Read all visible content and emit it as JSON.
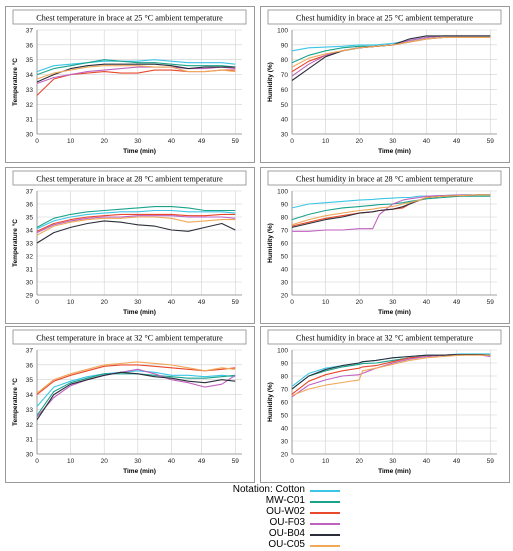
{
  "legend": {
    "prefix": "Notation:",
    "items": [
      {
        "name": "Cotton",
        "color": "#3cc5e6"
      },
      {
        "name": "MW-C01",
        "color": "#1aa38b"
      },
      {
        "name": "OU-W02",
        "color": "#e8482b"
      },
      {
        "name": "OU-F03",
        "color": "#c062c0"
      },
      {
        "name": "OU-B04",
        "color": "#2b2e3a"
      },
      {
        "name": "OU-C05",
        "color": "#f0a85a"
      }
    ]
  },
  "chart_data": [
    {
      "type": "line",
      "title": "Chest temperature in brace at 25 °C ambient temperature",
      "xlabel": "Time (min)",
      "ylabel": "Temperature °C",
      "xticks": [
        "0",
        "10",
        "20",
        "30",
        "40",
        "49",
        "59"
      ],
      "yticks": [
        "30",
        "31",
        "32",
        "33",
        "34",
        "35",
        "36",
        "37"
      ],
      "xlim": [
        0,
        61
      ],
      "ylim": [
        30,
        37
      ],
      "grid": true,
      "x": [
        0,
        5,
        10,
        15,
        20,
        25,
        30,
        35,
        40,
        45,
        50,
        55,
        59
      ],
      "series": [
        {
          "name": "Cotton",
          "values": [
            34.2,
            34.6,
            34.7,
            34.8,
            34.9,
            34.9,
            34.9,
            35.0,
            34.9,
            34.8,
            34.8,
            34.8,
            34.7
          ]
        },
        {
          "name": "MW-C01",
          "values": [
            34.0,
            34.4,
            34.6,
            34.8,
            35.0,
            34.9,
            34.8,
            34.8,
            34.7,
            34.6,
            34.6,
            34.6,
            34.5
          ]
        },
        {
          "name": "OU-W02",
          "values": [
            32.6,
            33.7,
            34.0,
            34.1,
            34.2,
            34.1,
            34.1,
            34.3,
            34.3,
            34.2,
            34.2,
            34.3,
            34.3
          ]
        },
        {
          "name": "OU-F03",
          "values": [
            33.4,
            33.8,
            34.0,
            34.2,
            34.3,
            34.4,
            34.5,
            34.5,
            34.5,
            34.4,
            34.4,
            34.5,
            34.4
          ]
        },
        {
          "name": "OU-B04",
          "values": [
            33.5,
            34.0,
            34.4,
            34.6,
            34.7,
            34.7,
            34.7,
            34.7,
            34.6,
            34.4,
            34.5,
            34.5,
            34.5
          ]
        },
        {
          "name": "OU-C05",
          "values": [
            33.7,
            34.1,
            34.3,
            34.5,
            34.6,
            34.6,
            34.6,
            34.5,
            34.5,
            34.2,
            34.2,
            34.3,
            34.2
          ]
        }
      ]
    },
    {
      "type": "line",
      "title": "Chest humidity in brace at 25 °C ambient temperature",
      "xlabel": "Time (min)",
      "ylabel": "Humidity (%)",
      "xticks": [
        "0",
        "10",
        "20",
        "30",
        "40",
        "49",
        "59"
      ],
      "yticks": [
        "30",
        "40",
        "50",
        "60",
        "70",
        "80",
        "90",
        "100"
      ],
      "xlim": [
        0,
        61
      ],
      "ylim": [
        30,
        100
      ],
      "grid": true,
      "x": [
        0,
        5,
        10,
        15,
        20,
        25,
        30,
        35,
        40,
        45,
        50,
        55,
        59
      ],
      "series": [
        {
          "name": "Cotton",
          "values": [
            86,
            88,
            88.5,
            89,
            90,
            90,
            91,
            93,
            95,
            96,
            96,
            96,
            96
          ]
        },
        {
          "name": "MW-C01",
          "values": [
            78,
            83,
            86,
            88,
            89,
            89,
            90,
            92,
            94,
            95,
            95,
            95,
            95
          ]
        },
        {
          "name": "OU-W02",
          "values": [
            72,
            79,
            83,
            86,
            88,
            89,
            90,
            92,
            94,
            95,
            95,
            95,
            95
          ]
        },
        {
          "name": "OU-F03",
          "values": [
            69,
            77,
            83,
            86,
            88,
            89,
            90,
            93,
            95,
            96,
            96,
            96,
            96
          ]
        },
        {
          "name": "OU-B04",
          "values": [
            66,
            74,
            82,
            86,
            88,
            89,
            90,
            94,
            96,
            96,
            96,
            96,
            96
          ]
        },
        {
          "name": "OU-C05",
          "values": [
            75,
            81,
            84,
            86,
            88,
            89,
            90,
            92,
            94,
            95,
            95,
            95,
            95
          ]
        }
      ]
    },
    {
      "type": "line",
      "title": "Chest temperature in brace at 28 °C ambient temperature",
      "xlabel": "Time (min)",
      "ylabel": "Temperature °C",
      "xticks": [
        "0",
        "10",
        "20",
        "30",
        "40",
        "49",
        "59"
      ],
      "yticks": [
        "29",
        "30",
        "31",
        "32",
        "33",
        "34",
        "35",
        "36",
        "37"
      ],
      "xlim": [
        0,
        61
      ],
      "ylim": [
        29,
        37
      ],
      "grid": true,
      "x": [
        0,
        5,
        10,
        15,
        20,
        25,
        30,
        35,
        40,
        45,
        50,
        55,
        59
      ],
      "series": [
        {
          "name": "Cotton",
          "values": [
            34.1,
            34.7,
            35.0,
            35.2,
            35.3,
            35.4,
            35.4,
            35.5,
            35.5,
            35.4,
            35.4,
            35.4,
            35.3
          ]
        },
        {
          "name": "MW-C01",
          "values": [
            34.2,
            34.9,
            35.2,
            35.4,
            35.5,
            35.6,
            35.7,
            35.8,
            35.8,
            35.7,
            35.5,
            35.5,
            35.5
          ]
        },
        {
          "name": "OU-W02",
          "values": [
            33.9,
            34.5,
            34.8,
            35.0,
            35.1,
            35.2,
            35.2,
            35.2,
            35.2,
            35.1,
            35.1,
            35.2,
            35.2
          ]
        },
        {
          "name": "OU-F03",
          "values": [
            33.8,
            34.4,
            34.7,
            34.9,
            35.0,
            35.0,
            35.1,
            35.1,
            35.1,
            35.0,
            35.0,
            35.0,
            34.9
          ]
        },
        {
          "name": "OU-B04",
          "values": [
            33.0,
            33.8,
            34.2,
            34.5,
            34.7,
            34.6,
            34.4,
            34.3,
            34.0,
            33.9,
            34.2,
            34.5,
            34.0
          ]
        },
        {
          "name": "OU-C05",
          "values": [
            33.6,
            34.3,
            34.6,
            34.8,
            34.9,
            34.9,
            35.0,
            35.0,
            34.9,
            34.6,
            34.7,
            34.8,
            34.8
          ]
        }
      ]
    },
    {
      "type": "line",
      "title": "Chest humidity in brace at 28 °C ambient temperature",
      "xlabel": "Time (min)",
      "ylabel": "Humidity (%)",
      "xticks": [
        "0",
        "10",
        "20",
        "30",
        "40",
        "49",
        "59"
      ],
      "yticks": [
        "20",
        "30",
        "40",
        "50",
        "60",
        "70",
        "80",
        "90",
        "100"
      ],
      "xlim": [
        0,
        61
      ],
      "ylim": [
        20,
        100
      ],
      "grid": true,
      "x": [
        0,
        5,
        10,
        15,
        20,
        24,
        26,
        30,
        33,
        35,
        38,
        40,
        45,
        50,
        55,
        59
      ],
      "series": [
        {
          "name": "Cotton",
          "values": [
            87,
            90,
            91,
            92,
            93,
            93.5,
            94,
            94.5,
            95,
            95,
            96,
            96,
            96.5,
            97,
            97,
            97
          ]
        },
        {
          "name": "MW-C01",
          "values": [
            78,
            82,
            85,
            87,
            88,
            89,
            89.5,
            90,
            91,
            92,
            93,
            94,
            95,
            96,
            96,
            96
          ]
        },
        {
          "name": "OU-W02",
          "values": [
            73,
            76,
            79,
            81,
            83,
            84,
            85,
            86,
            87,
            90,
            93,
            95,
            96,
            96.5,
            97,
            97
          ]
        },
        {
          "name": "OU-F03",
          "values": [
            69,
            69,
            70,
            70,
            71,
            71,
            82,
            90,
            93,
            94,
            95,
            96,
            96.5,
            97,
            97,
            97
          ]
        },
        {
          "name": "OU-B04",
          "values": [
            72,
            75,
            78,
            80,
            83,
            84,
            85,
            86,
            88,
            90,
            93,
            95,
            96,
            96.5,
            97,
            97
          ]
        },
        {
          "name": "OU-C05",
          "values": [
            74,
            78,
            81,
            83,
            85,
            86,
            87,
            88,
            90,
            91,
            93,
            95,
            96,
            96.5,
            97,
            97
          ]
        }
      ]
    },
    {
      "type": "line",
      "title": "Chest temperature in brace at 32 °C ambient temperature",
      "xlabel": "Time (min)",
      "ylabel": "Temperature °C",
      "xticks": [
        "0",
        "10",
        "20",
        "30",
        "40",
        "49",
        "59"
      ],
      "yticks": [
        "30",
        "31",
        "32",
        "33",
        "34",
        "35",
        "36",
        "37"
      ],
      "xlim": [
        0,
        61
      ],
      "ylim": [
        30,
        37
      ],
      "grid": true,
      "x": [
        0,
        5,
        10,
        15,
        20,
        25,
        30,
        35,
        40,
        45,
        50,
        55,
        59
      ],
      "series": [
        {
          "name": "Cotton",
          "values": [
            33.2,
            34.5,
            34.9,
            35.2,
            35.4,
            35.5,
            35.6,
            35.5,
            35.3,
            35.3,
            35.2,
            35.3,
            35.2
          ]
        },
        {
          "name": "MW-C01",
          "values": [
            32.6,
            34.2,
            34.8,
            35.1,
            35.4,
            35.4,
            35.4,
            35.3,
            35.2,
            35.1,
            35.1,
            35.2,
            35.3
          ]
        },
        {
          "name": "OU-W02",
          "values": [
            34.0,
            34.9,
            35.3,
            35.6,
            35.9,
            36.0,
            36.0,
            35.9,
            35.8,
            35.7,
            35.6,
            35.7,
            35.8
          ]
        },
        {
          "name": "OU-F03",
          "values": [
            32.5,
            33.8,
            34.6,
            35.0,
            35.3,
            35.5,
            35.7,
            35.4,
            35.0,
            34.8,
            34.5,
            34.7,
            35.3
          ]
        },
        {
          "name": "OU-B04",
          "values": [
            32.3,
            34.0,
            34.7,
            35.0,
            35.3,
            35.5,
            35.4,
            35.2,
            35.1,
            34.9,
            34.8,
            35.0,
            34.9
          ]
        },
        {
          "name": "OU-C05",
          "values": [
            34.1,
            35.0,
            35.4,
            35.7,
            36.0,
            36.1,
            36.2,
            36.1,
            36.0,
            35.8,
            35.6,
            35.8,
            35.7
          ]
        }
      ]
    },
    {
      "type": "line",
      "title": "Chest humidity in brace at 32 °C ambient temperature",
      "xlabel": "Time (min)",
      "ylabel": "Humidity (%)",
      "xticks": [
        "0",
        "10",
        "20",
        "30",
        "40",
        "49",
        "59"
      ],
      "yticks": [
        "20",
        "30",
        "40",
        "50",
        "60",
        "70",
        "80",
        "90",
        "100"
      ],
      "xlim": [
        0,
        61
      ],
      "ylim": [
        20,
        100
      ],
      "grid": true,
      "x": [
        0,
        5,
        10,
        15,
        20,
        21,
        25,
        30,
        35,
        40,
        45,
        50,
        55,
        59
      ],
      "series": [
        {
          "name": "Cotton",
          "values": [
            72,
            82,
            86,
            88,
            90,
            91,
            92,
            94,
            95,
            96,
            96,
            97,
            97,
            97
          ]
        },
        {
          "name": "MW-C01",
          "values": [
            70,
            80,
            84,
            87,
            89,
            89.5,
            90,
            92,
            94,
            95,
            96,
            96,
            96.5,
            96
          ]
        },
        {
          "name": "OU-W02",
          "values": [
            66,
            76,
            81,
            84,
            86,
            87,
            88,
            91,
            94,
            95,
            96,
            96.5,
            96.5,
            96
          ]
        },
        {
          "name": "OU-F03",
          "values": [
            64,
            73,
            77,
            80,
            81,
            82,
            86,
            90,
            93,
            95,
            96,
            96.5,
            96.5,
            95
          ]
        },
        {
          "name": "OU-B04",
          "values": [
            70,
            80,
            85,
            88,
            90,
            91,
            92,
            94,
            95,
            96,
            96,
            96.5,
            96.5,
            96
          ]
        },
        {
          "name": "OU-C05",
          "values": [
            65,
            70,
            73,
            75,
            77,
            84,
            86,
            89,
            92,
            94,
            95,
            96,
            96,
            96
          ]
        }
      ]
    }
  ]
}
